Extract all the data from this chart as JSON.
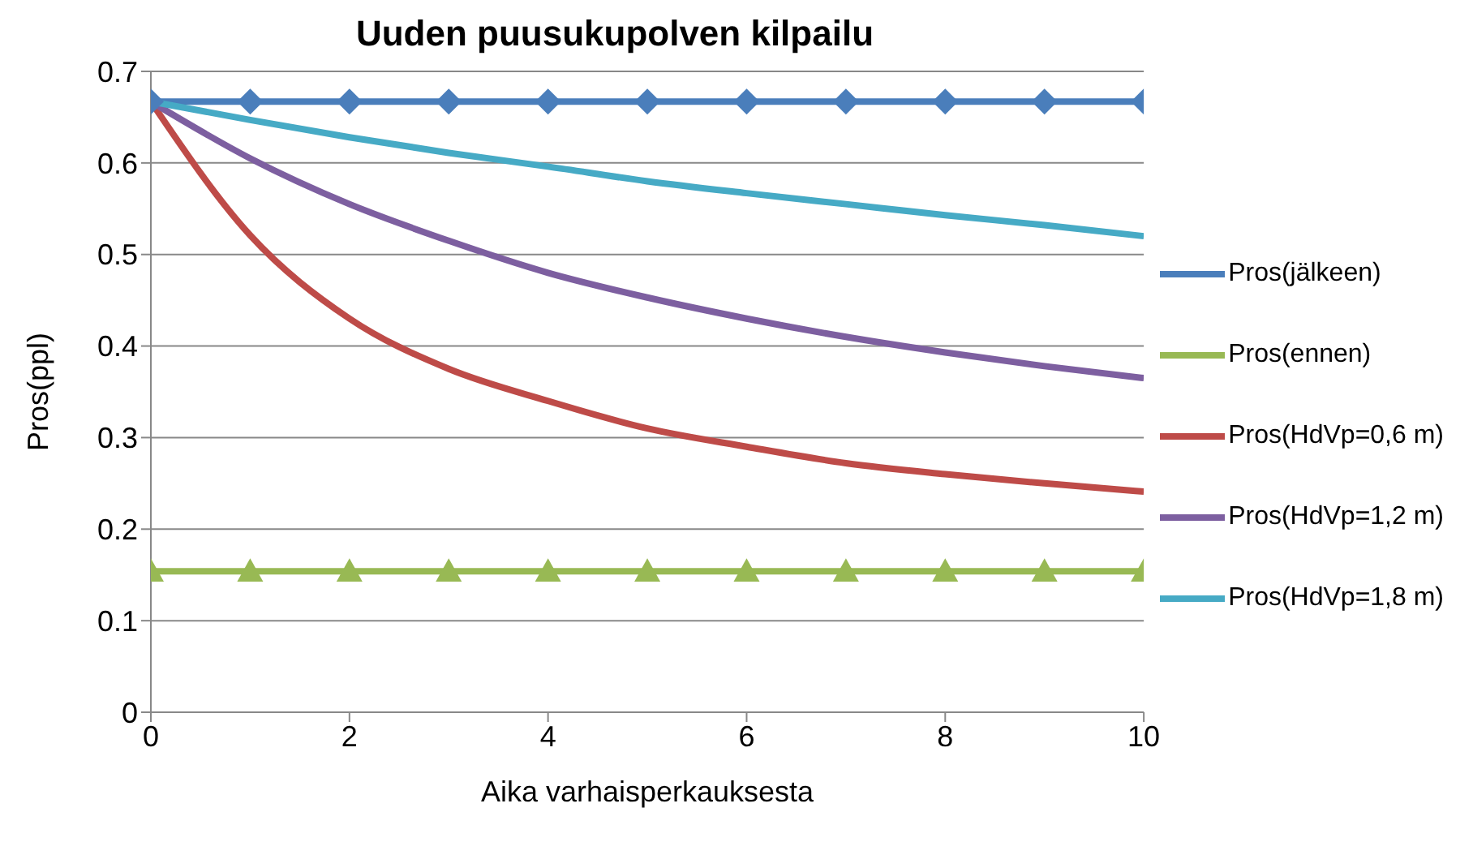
{
  "chart_data": {
    "type": "line",
    "title": "Uuden puusukupolven kilpailu",
    "xlabel": "Aika varhaisperkauksesta",
    "ylabel": "Pros(ppl)",
    "x": [
      0,
      1,
      2,
      3,
      4,
      5,
      6,
      7,
      8,
      9,
      10
    ],
    "xlim": [
      0,
      10
    ],
    "xticks": [
      0,
      2,
      4,
      6,
      8,
      10
    ],
    "ylim": [
      0,
      0.7
    ],
    "yticks": [
      0,
      0.1,
      0.2,
      0.3,
      0.4,
      0.5,
      0.6,
      0.7
    ],
    "grid": "y",
    "legend": "right",
    "line_style": "solid",
    "series": [
      {
        "name": "Pros(jälkeen)",
        "color": "#4a7ebb",
        "marker": "diamond",
        "values": [
          0.667,
          0.667,
          0.667,
          0.667,
          0.667,
          0.667,
          0.667,
          0.667,
          0.667,
          0.667,
          0.667
        ]
      },
      {
        "name": "Pros(ennen)",
        "color": "#98b954",
        "marker": "triangle",
        "values": [
          0.154,
          0.154,
          0.154,
          0.154,
          0.154,
          0.154,
          0.154,
          0.154,
          0.154,
          0.154,
          0.154
        ]
      },
      {
        "name": "Pros(HdVp=0,6 m)",
        "color": "#be4b48",
        "marker": "none",
        "values": [
          0.667,
          0.521,
          0.43,
          0.375,
          0.34,
          0.31,
          0.29,
          0.272,
          0.26,
          0.25,
          0.241
        ]
      },
      {
        "name": "Pros(HdVp=1,2 m)",
        "color": "#7d5fa0",
        "marker": "none",
        "values": [
          0.667,
          0.605,
          0.555,
          0.515,
          0.48,
          0.453,
          0.43,
          0.41,
          0.393,
          0.378,
          0.365
        ]
      },
      {
        "name": "Pros(HdVp=1,8 m)",
        "color": "#46aac5",
        "marker": "none",
        "values": [
          0.667,
          0.647,
          0.628,
          0.611,
          0.596,
          0.58,
          0.567,
          0.555,
          0.543,
          0.532,
          0.52
        ]
      }
    ]
  }
}
